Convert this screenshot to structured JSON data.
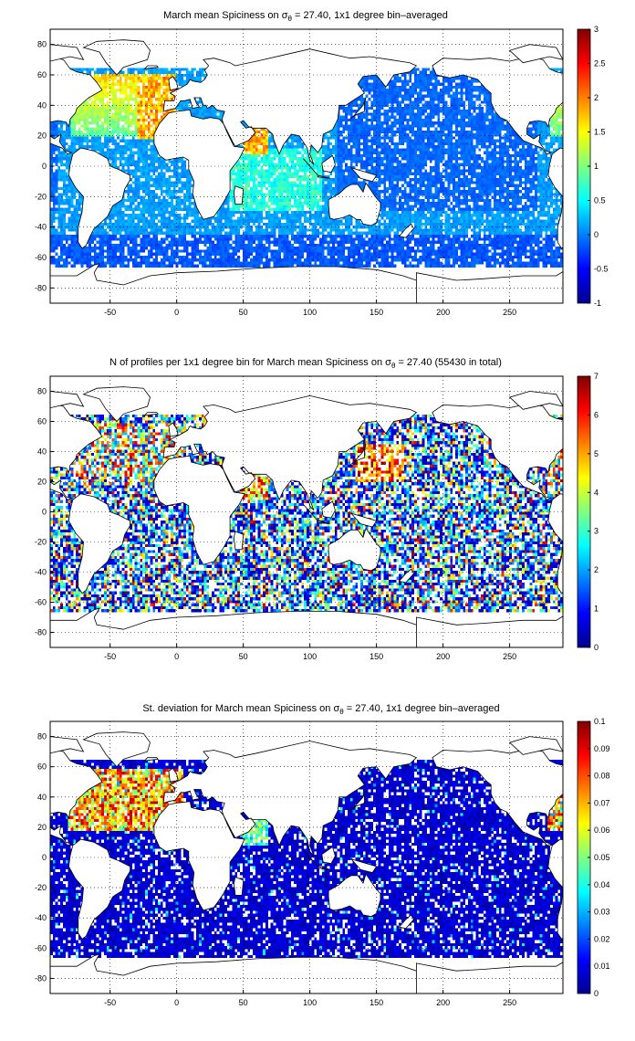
{
  "colormap": [
    "#00008f",
    "#0000ff",
    "#0080ff",
    "#00ffff",
    "#80ff80",
    "#ffff00",
    "#ff8000",
    "#ff0000",
    "#800000"
  ],
  "land_color": "#ffffff",
  "coast_color": "#000000",
  "grid": true,
  "chart_data": [
    {
      "type": "heatmap",
      "title_pre": "March mean Spiciness on ",
      "title_sigma": "σ",
      "title_sub": "θ",
      "title_post": " = 27.40, 1x1 degree bin–averaged",
      "xlim": [
        -95,
        290
      ],
      "ylim": [
        -90,
        90
      ],
      "x_ticks": [
        -50,
        0,
        50,
        100,
        150,
        200,
        250
      ],
      "y_ticks": [
        80,
        60,
        40,
        20,
        0,
        -20,
        -40,
        -60,
        -80
      ],
      "clim": [
        -1,
        3
      ],
      "c_ticks": [
        3,
        2.5,
        2,
        1.5,
        1,
        0.5,
        0,
        -0.5,
        -1
      ],
      "scene": "spice",
      "coverage": "broad"
    },
    {
      "type": "heatmap",
      "title_pre": "N of profiles per 1x1 degree bin for March mean Spiciness on ",
      "title_sigma": "σ",
      "title_sub": "θ",
      "title_post": " = 27.40 (55430 in total)",
      "xlim": [
        -95,
        290
      ],
      "ylim": [
        -90,
        90
      ],
      "x_ticks": [
        -50,
        0,
        50,
        100,
        150,
        200,
        250
      ],
      "y_ticks": [
        80,
        60,
        40,
        20,
        0,
        -20,
        -40,
        -60,
        -80
      ],
      "clim": [
        0,
        7
      ],
      "c_ticks": [
        7,
        6,
        5,
        4,
        3,
        2,
        1,
        0
      ],
      "scene": "count",
      "coverage": "full"
    },
    {
      "type": "heatmap",
      "title_pre": "St. deviation for March mean Spiciness on ",
      "title_sigma": "σ",
      "title_sub": "θ",
      "title_post": " = 27.40, 1x1 degree bin–averaged",
      "xlim": [
        -95,
        290
      ],
      "ylim": [
        -90,
        90
      ],
      "x_ticks": [
        -50,
        0,
        50,
        100,
        150,
        200,
        250
      ],
      "y_ticks": [
        80,
        60,
        40,
        20,
        0,
        -20,
        -40,
        -60,
        -80
      ],
      "clim": [
        0,
        0.1
      ],
      "c_ticks": [
        0.1,
        0.09,
        0.08,
        0.07,
        0.06,
        0.05,
        0.04,
        0.03,
        0.02,
        0.01,
        0
      ],
      "scene": "std",
      "coverage": "broad"
    }
  ]
}
